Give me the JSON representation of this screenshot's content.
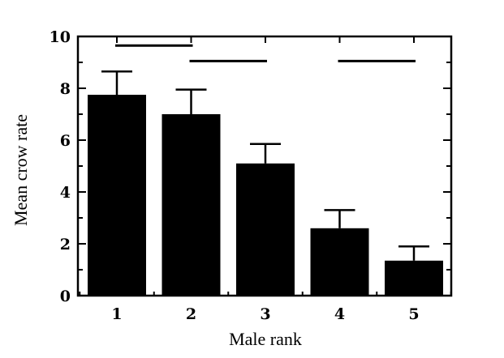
{
  "chart_data": {
    "type": "bar",
    "xlabel": "Male rank",
    "ylabel": "Mean crow rate",
    "categories": [
      "1",
      "2",
      "3",
      "4",
      "5"
    ],
    "values": [
      7.75,
      7.0,
      5.1,
      2.6,
      1.35
    ],
    "error_upper": [
      8.65,
      7.95,
      5.85,
      3.3,
      1.9
    ],
    "ylim": [
      0,
      10
    ],
    "yticks": [
      "0",
      "2",
      "4",
      "6",
      "8",
      "10"
    ],
    "grid": false,
    "bar_color": "#000000",
    "significance_lines": [
      {
        "from": 1,
        "to": 2,
        "y": 9.65
      },
      {
        "from": 2,
        "to": 3,
        "y": 9.05
      },
      {
        "from": 4,
        "to": 5,
        "y": 9.05
      }
    ]
  }
}
